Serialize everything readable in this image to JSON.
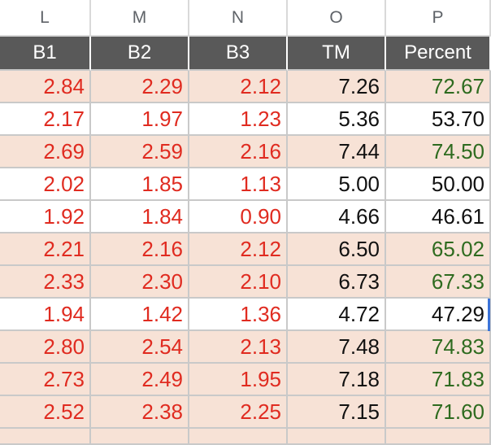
{
  "column_letters": [
    "L",
    "M",
    "N",
    "O",
    "P"
  ],
  "header": [
    "B1",
    "B2",
    "B3",
    "TM",
    "Percent"
  ],
  "rows": [
    {
      "shaded": true,
      "cells": [
        "2.84",
        "2.29",
        "2.12",
        "7.26",
        "72.67"
      ],
      "percent_color": "green"
    },
    {
      "shaded": false,
      "cells": [
        "2.17",
        "1.97",
        "1.23",
        "5.36",
        "53.70"
      ],
      "percent_color": "black"
    },
    {
      "shaded": true,
      "cells": [
        "2.69",
        "2.59",
        "2.16",
        "7.44",
        "74.50"
      ],
      "percent_color": "green"
    },
    {
      "shaded": false,
      "cells": [
        "2.02",
        "1.85",
        "1.13",
        "5.00",
        "50.00"
      ],
      "percent_color": "black"
    },
    {
      "shaded": false,
      "cells": [
        "1.92",
        "1.84",
        "0.90",
        "4.66",
        "46.61"
      ],
      "percent_color": "black"
    },
    {
      "shaded": true,
      "cells": [
        "2.21",
        "2.16",
        "2.12",
        "6.50",
        "65.02"
      ],
      "percent_color": "green"
    },
    {
      "shaded": true,
      "cells": [
        "2.33",
        "2.30",
        "2.10",
        "6.73",
        "67.33"
      ],
      "percent_color": "green"
    },
    {
      "shaded": false,
      "cells": [
        "1.94",
        "1.42",
        "1.36",
        "4.72",
        "47.29"
      ],
      "percent_color": "black"
    },
    {
      "shaded": true,
      "cells": [
        "2.80",
        "2.54",
        "2.13",
        "7.48",
        "74.83"
      ],
      "percent_color": "green"
    },
    {
      "shaded": true,
      "cells": [
        "2.73",
        "2.49",
        "1.95",
        "7.18",
        "71.83"
      ],
      "percent_color": "green"
    },
    {
      "shaded": true,
      "cells": [
        "2.52",
        "2.38",
        "2.25",
        "7.15",
        "71.60"
      ],
      "percent_color": "green"
    }
  ],
  "colors": {
    "header_bg": "#595959",
    "row_shade": "#f7e2d6",
    "value_red": "#e02b20",
    "value_green": "#2e6b1f",
    "selection": "#3b73d9"
  }
}
